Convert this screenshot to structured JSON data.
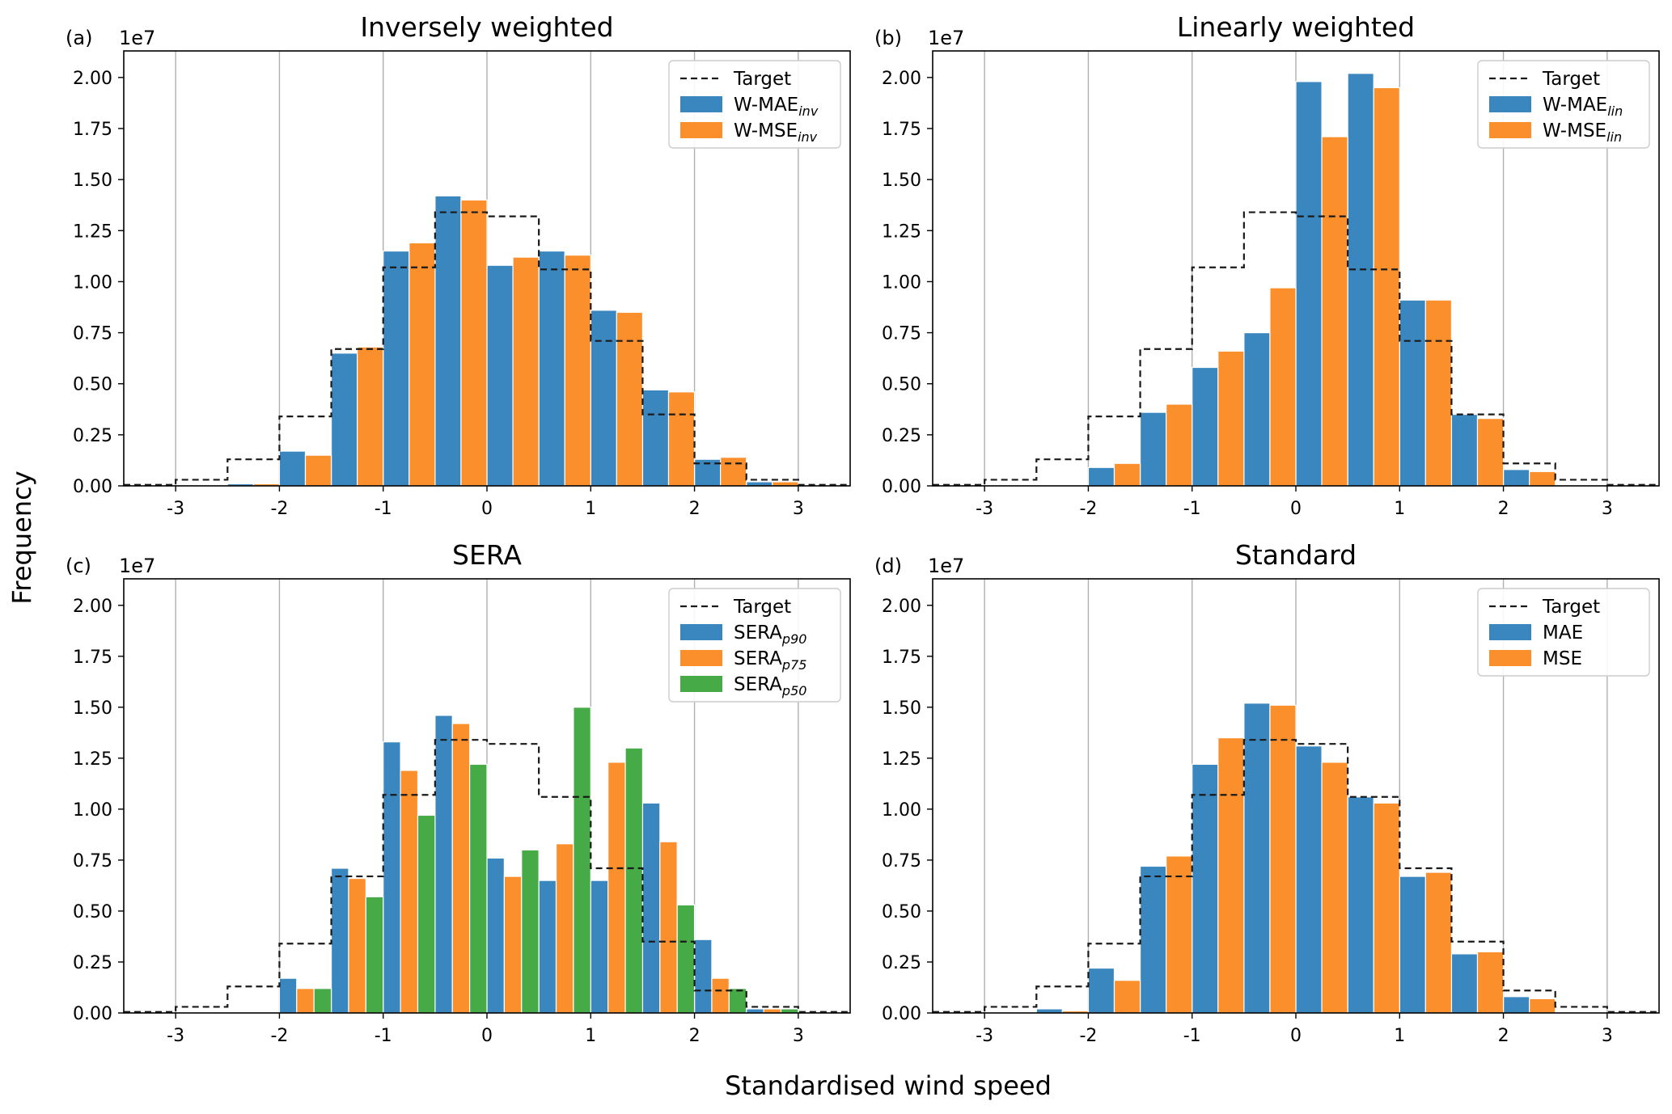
{
  "figure": {
    "ylabel": "Frequency",
    "xlabel": "Standardised wind speed",
    "colors": {
      "blue": "#3a87c0",
      "orange": "#fa8f2c",
      "green": "#46ab46",
      "target": "#1a1a1a",
      "grid": "#b0b0b0"
    }
  },
  "chart_data": [
    {
      "type": "bar",
      "panel": "(a)",
      "title": "Inversely weighted",
      "multiplier": "1e7",
      "xlim": [
        -3.5,
        3.5
      ],
      "ylim": [
        0,
        2.13
      ],
      "xticks": [
        -3,
        -2,
        -1,
        0,
        1,
        2,
        3
      ],
      "xtick_labels": [
        "-3",
        "-2",
        "-1",
        "0",
        "1",
        "2",
        "3"
      ],
      "yticks": [
        0,
        0.25,
        0.5,
        0.75,
        1.0,
        1.25,
        1.5,
        1.75,
        2.0
      ],
      "ytick_labels": [
        "0.00",
        "0.25",
        "0.50",
        "0.75",
        "1.00",
        "1.25",
        "1.50",
        "1.75",
        "2.00"
      ],
      "bin_edges": [
        -3.5,
        -3,
        -2.5,
        -2,
        -1.5,
        -1,
        -0.5,
        0,
        0.5,
        1,
        1.5,
        2,
        2.5,
        3,
        3.5
      ],
      "target": [
        0.005,
        0.03,
        0.13,
        0.34,
        0.67,
        1.07,
        1.34,
        1.32,
        1.06,
        0.71,
        0.35,
        0.11,
        0.03,
        0.005
      ],
      "legend": {
        "target_label": "Target",
        "location": "upper right"
      },
      "series": [
        {
          "name": "W-MAE",
          "sub": "inv",
          "color": "blue",
          "values": [
            0.0,
            0.0,
            0.01,
            0.17,
            0.65,
            1.15,
            1.42,
            1.08,
            1.15,
            0.86,
            0.47,
            0.13,
            0.02,
            0.0
          ]
        },
        {
          "name": "W-MSE",
          "sub": "inv",
          "color": "orange",
          "values": [
            0.0,
            0.0,
            0.01,
            0.15,
            0.68,
            1.19,
            1.4,
            1.12,
            1.13,
            0.85,
            0.46,
            0.14,
            0.02,
            0.0
          ]
        }
      ]
    },
    {
      "type": "bar",
      "panel": "(b)",
      "title": "Linearly weighted",
      "multiplier": "1e7",
      "xlim": [
        -3.5,
        3.5
      ],
      "ylim": [
        0,
        2.13
      ],
      "xticks": [
        -3,
        -2,
        -1,
        0,
        1,
        2,
        3
      ],
      "xtick_labels": [
        "-3",
        "-2",
        "-1",
        "0",
        "1",
        "2",
        "3"
      ],
      "yticks": [
        0,
        0.25,
        0.5,
        0.75,
        1.0,
        1.25,
        1.5,
        1.75,
        2.0
      ],
      "ytick_labels": [
        "0.00",
        "0.25",
        "0.50",
        "0.75",
        "1.00",
        "1.25",
        "1.50",
        "1.75",
        "2.00"
      ],
      "bin_edges": [
        -3.5,
        -3,
        -2.5,
        -2,
        -1.5,
        -1,
        -0.5,
        0,
        0.5,
        1,
        1.5,
        2,
        2.5,
        3,
        3.5
      ],
      "target": [
        0.005,
        0.03,
        0.13,
        0.34,
        0.67,
        1.07,
        1.34,
        1.32,
        1.06,
        0.71,
        0.35,
        0.11,
        0.03,
        0.005
      ],
      "legend": {
        "target_label": "Target",
        "location": "upper right"
      },
      "series": [
        {
          "name": "W-MAE",
          "sub": "lin",
          "color": "blue",
          "values": [
            0.0,
            0.0,
            0.0,
            0.09,
            0.36,
            0.58,
            0.75,
            1.98,
            2.02,
            0.91,
            0.35,
            0.08,
            0.0,
            0.0
          ]
        },
        {
          "name": "W-MSE",
          "sub": "lin",
          "color": "orange",
          "values": [
            0.0,
            0.0,
            0.0,
            0.11,
            0.4,
            0.66,
            0.97,
            1.71,
            1.95,
            0.91,
            0.33,
            0.07,
            0.0,
            0.0
          ]
        }
      ]
    },
    {
      "type": "bar",
      "panel": "(c)",
      "title": "SERA",
      "multiplier": "1e7",
      "xlim": [
        -3.5,
        3.5
      ],
      "ylim": [
        0,
        2.13
      ],
      "xticks": [
        -3,
        -2,
        -1,
        0,
        1,
        2,
        3
      ],
      "xtick_labels": [
        "-3",
        "-2",
        "-1",
        "0",
        "1",
        "2",
        "3"
      ],
      "yticks": [
        0,
        0.25,
        0.5,
        0.75,
        1.0,
        1.25,
        1.5,
        1.75,
        2.0
      ],
      "ytick_labels": [
        "0.00",
        "0.25",
        "0.50",
        "0.75",
        "1.00",
        "1.25",
        "1.50",
        "1.75",
        "2.00"
      ],
      "bin_edges": [
        -3.5,
        -3,
        -2.5,
        -2,
        -1.5,
        -1,
        -0.5,
        0,
        0.5,
        1,
        1.5,
        2,
        2.5,
        3,
        3.5
      ],
      "target": [
        0.005,
        0.03,
        0.13,
        0.34,
        0.67,
        1.07,
        1.34,
        1.32,
        1.06,
        0.71,
        0.35,
        0.11,
        0.03,
        0.005
      ],
      "legend": {
        "target_label": "Target",
        "location": "upper right"
      },
      "series": [
        {
          "name": "SERA",
          "sub": "p90",
          "color": "blue",
          "values": [
            0.0,
            0.0,
            0.0,
            0.17,
            0.71,
            1.33,
            1.46,
            0.76,
            0.65,
            0.65,
            1.03,
            0.36,
            0.02,
            0.0
          ]
        },
        {
          "name": "SERA",
          "sub": "p75",
          "color": "orange",
          "values": [
            0.0,
            0.0,
            0.0,
            0.12,
            0.66,
            1.19,
            1.42,
            0.67,
            0.83,
            1.23,
            0.84,
            0.17,
            0.02,
            0.0
          ]
        },
        {
          "name": "SERA",
          "sub": "p50",
          "color": "green",
          "values": [
            0.0,
            0.0,
            0.0,
            0.12,
            0.57,
            0.97,
            1.22,
            0.8,
            1.5,
            1.3,
            0.53,
            0.12,
            0.02,
            0.0
          ]
        }
      ]
    },
    {
      "type": "bar",
      "panel": "(d)",
      "title": "Standard",
      "multiplier": "1e7",
      "xlim": [
        -3.5,
        3.5
      ],
      "ylim": [
        0,
        2.13
      ],
      "xticks": [
        -3,
        -2,
        -1,
        0,
        1,
        2,
        3
      ],
      "xtick_labels": [
        "-3",
        "-2",
        "-1",
        "0",
        "1",
        "2",
        "3"
      ],
      "yticks": [
        0,
        0.25,
        0.5,
        0.75,
        1.0,
        1.25,
        1.5,
        1.75,
        2.0
      ],
      "ytick_labels": [
        "0.00",
        "0.25",
        "0.50",
        "0.75",
        "1.00",
        "1.25",
        "1.50",
        "1.75",
        "2.00"
      ],
      "bin_edges": [
        -3.5,
        -3,
        -2.5,
        -2,
        -1.5,
        -1,
        -0.5,
        0,
        0.5,
        1,
        1.5,
        2,
        2.5,
        3,
        3.5
      ],
      "target": [
        0.005,
        0.03,
        0.13,
        0.34,
        0.67,
        1.07,
        1.34,
        1.32,
        1.06,
        0.71,
        0.35,
        0.11,
        0.03,
        0.005
      ],
      "legend": {
        "target_label": "Target",
        "location": "upper right"
      },
      "series": [
        {
          "name": "MAE",
          "sub": "",
          "color": "blue",
          "values": [
            0.0,
            0.0,
            0.02,
            0.22,
            0.72,
            1.22,
            1.52,
            1.31,
            1.06,
            0.67,
            0.29,
            0.08,
            0.0,
            0.0
          ]
        },
        {
          "name": "MSE",
          "sub": "",
          "color": "orange",
          "values": [
            0.0,
            0.0,
            0.01,
            0.16,
            0.77,
            1.35,
            1.51,
            1.23,
            1.03,
            0.69,
            0.3,
            0.07,
            0.0,
            0.0
          ]
        }
      ]
    }
  ]
}
